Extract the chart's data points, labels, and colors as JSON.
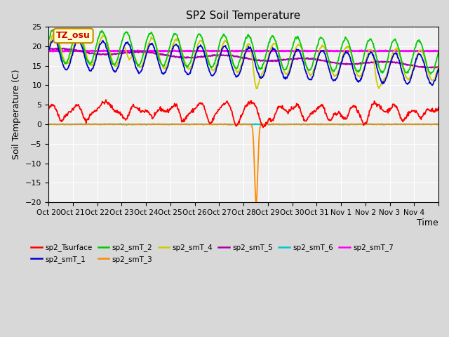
{
  "title": "SP2 Soil Temperature",
  "ylabel": "Soil Temperature (C)",
  "xlabel": "Time",
  "n_days": 16,
  "ylim": [
    -20,
    25
  ],
  "yticks": [
    -20,
    -15,
    -10,
    -5,
    0,
    5,
    10,
    15,
    20,
    25
  ],
  "xtick_positions": [
    0,
    1,
    2,
    3,
    4,
    5,
    6,
    7,
    8,
    9,
    10,
    11,
    12,
    13,
    14,
    15,
    16
  ],
  "xtick_labels": [
    "Oct 20",
    "Oct 21",
    "Oct 22",
    "Oct 23",
    "Oct 24",
    "Oct 25",
    "Oct 26",
    "Oct 27",
    "Oct 28",
    "Oct 29",
    "Oct 30",
    "Oct 31",
    "Nov 1",
    "Nov 2",
    "Nov 3",
    "Nov 4",
    ""
  ],
  "fig_bg_color": "#d8d8d8",
  "plot_bg": "#f0f0f0",
  "grid_color": "#ffffff",
  "series_colors": {
    "sp2_Tsurface": "#ff0000",
    "sp2_smT_1": "#0000cc",
    "sp2_smT_2": "#00cc00",
    "sp2_smT_3": "#ff8800",
    "sp2_smT_4": "#cccc00",
    "sp2_smT_5": "#aa00aa",
    "sp2_smT_6": "#00cccc",
    "sp2_smT_7": "#ff00ff"
  },
  "annotation_text": "TZ_osu",
  "annotation_color": "#cc0000",
  "annotation_bg": "#ffffcc",
  "annotation_border": "#cc8800"
}
